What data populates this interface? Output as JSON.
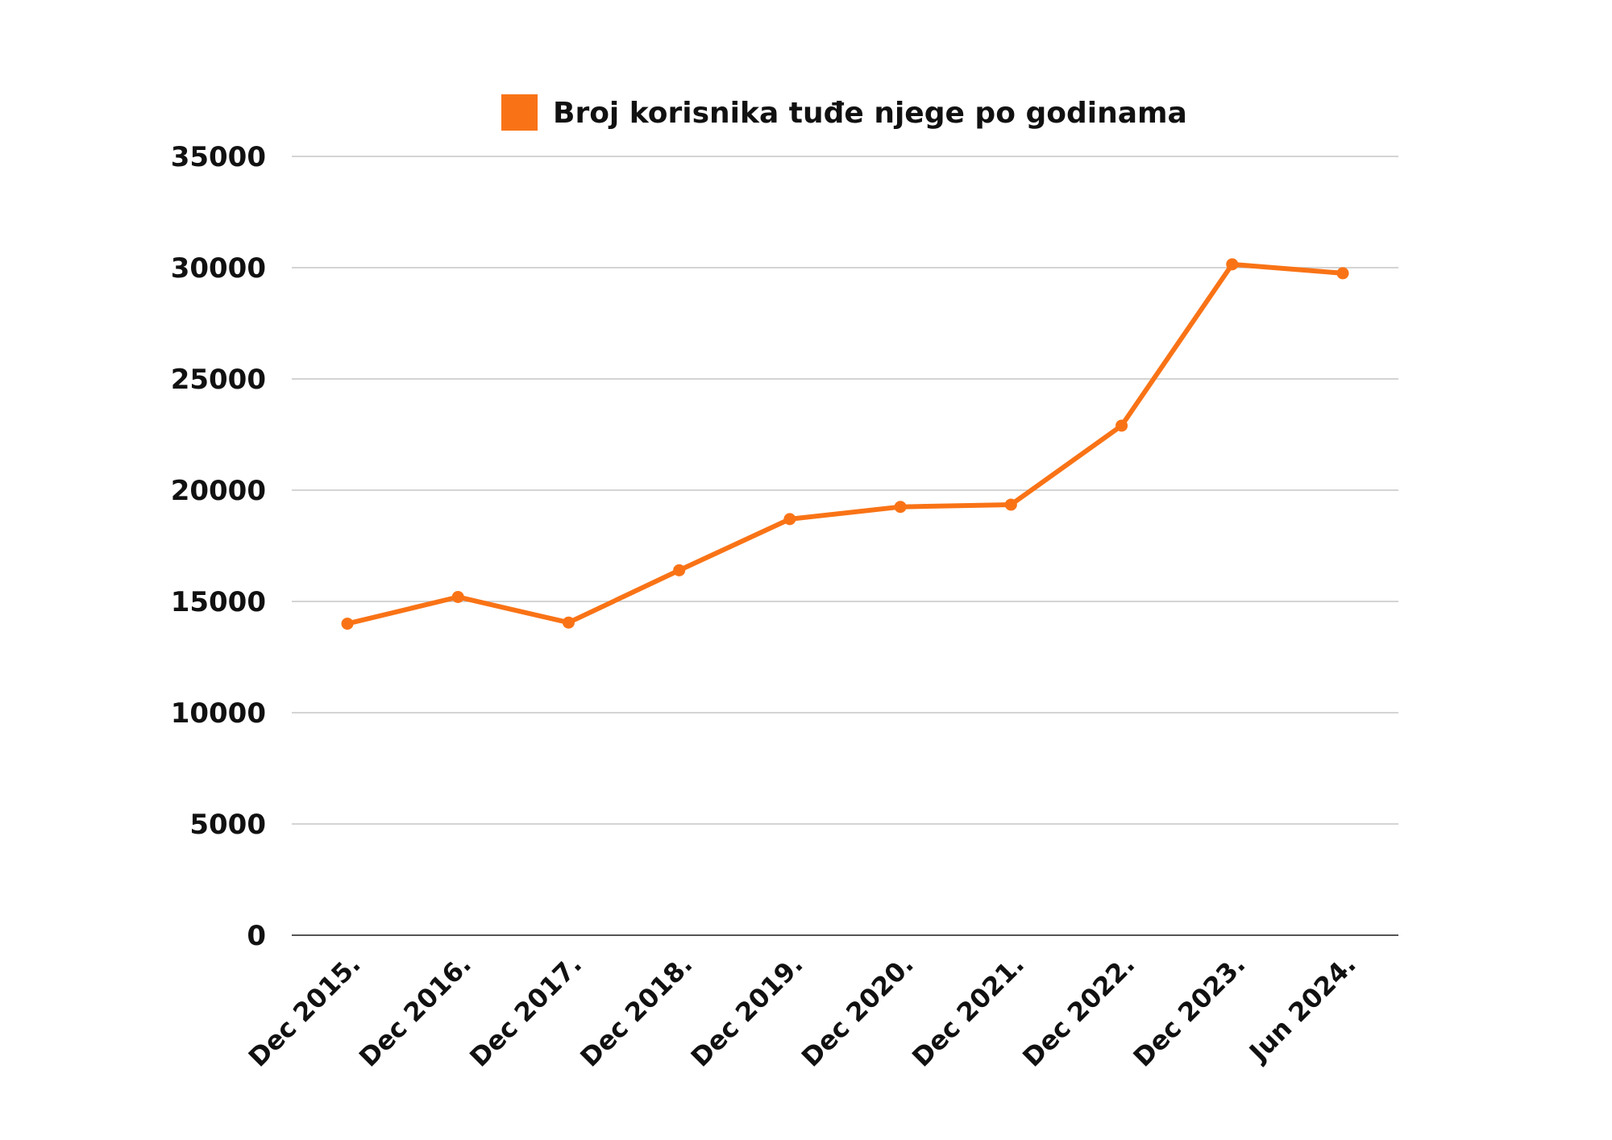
{
  "chart_data": {
    "type": "line",
    "title": "",
    "xlabel": "",
    "ylabel": "",
    "categories": [
      "Dec 2015.",
      "Dec 2016.",
      "Dec 2017.",
      "Dec 2018.",
      "Dec 2019.",
      "Dec 2020.",
      "Dec 2021.",
      "Dec 2022.",
      "Dec 2023.",
      "Jun 2024."
    ],
    "series": [
      {
        "name": "Broj korisnika tuđe njege po godinama",
        "color": "#f97316",
        "values": [
          14000,
          15200,
          14050,
          16400,
          18700,
          19250,
          19350,
          22900,
          30150,
          29750
        ]
      }
    ],
    "ylim": [
      0,
      35000
    ],
    "yticks": [
      0,
      5000,
      10000,
      15000,
      20000,
      25000,
      30000,
      35000
    ],
    "grid": true,
    "legend": "top-center"
  }
}
